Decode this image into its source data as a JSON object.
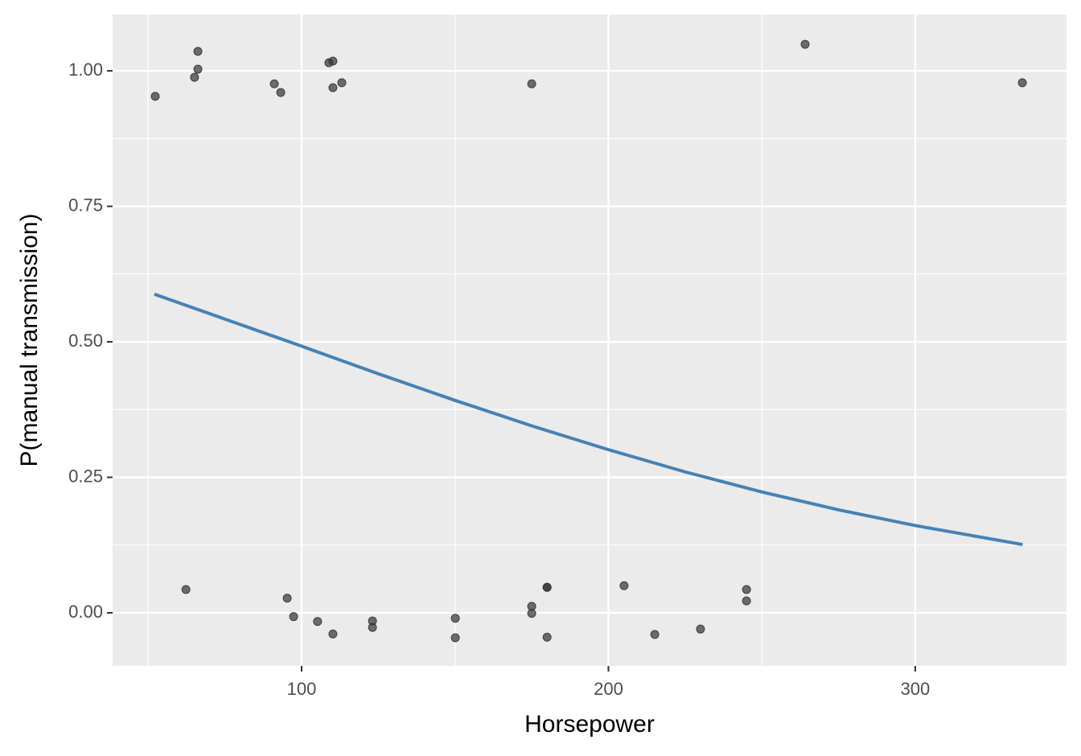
{
  "chart_data": {
    "type": "scatter",
    "x_label": "Horsepower",
    "y_label": "P(manual transmission)",
    "xlim": [
      38.4,
      349.3
    ],
    "ylim": [
      -0.098,
      1.104
    ],
    "xticks": [
      100,
      200,
      300
    ],
    "yticks": [
      {
        "value": 0,
        "label": "0.00"
      },
      {
        "value": 0.25,
        "label": "0.25"
      },
      {
        "value": 0.5,
        "label": "0.50"
      },
      {
        "value": 0.75,
        "label": "0.75"
      },
      {
        "value": 1,
        "label": "1.00"
      }
    ],
    "xminor": [
      50,
      150,
      250
    ],
    "yminor": [
      0.125,
      0.375,
      0.625,
      0.875
    ],
    "grid": true,
    "points": {
      "color": "#333333",
      "x": [
        52.3,
        65.1,
        66.2,
        66.2,
        91.1,
        93.2,
        108.9,
        110.2,
        110.2,
        113.1,
        175.0,
        264.1,
        334.9,
        62.3,
        95.3,
        97.4,
        105.2,
        110.2,
        123.1,
        123.1,
        150.1,
        150.1,
        175.0,
        175.0,
        180.0,
        180.0,
        180.0,
        205.1,
        215.1,
        230.0,
        245.0,
        245.0
      ],
      "y": [
        0.953,
        0.988,
        1.036,
        1.003,
        0.976,
        0.96,
        1.015,
        1.018,
        0.969,
        0.978,
        0.976,
        1.049,
        0.978,
        0.043,
        0.027,
        -0.007,
        -0.016,
        -0.039,
        -0.015,
        -0.027,
        -0.01,
        -0.046,
        0.012,
        -0.001,
        0.047,
        0.047,
        -0.045,
        0.05,
        -0.04,
        -0.03,
        0.043,
        0.022
      ]
    },
    "fit": {
      "color": "#4682b4",
      "x": [
        52,
        75,
        100,
        125,
        150,
        175,
        200,
        225,
        250,
        275,
        300,
        335
      ],
      "y": [
        0.588,
        0.542,
        0.492,
        0.441,
        0.392,
        0.345,
        0.301,
        0.26,
        0.223,
        0.19,
        0.161,
        0.126
      ]
    }
  }
}
